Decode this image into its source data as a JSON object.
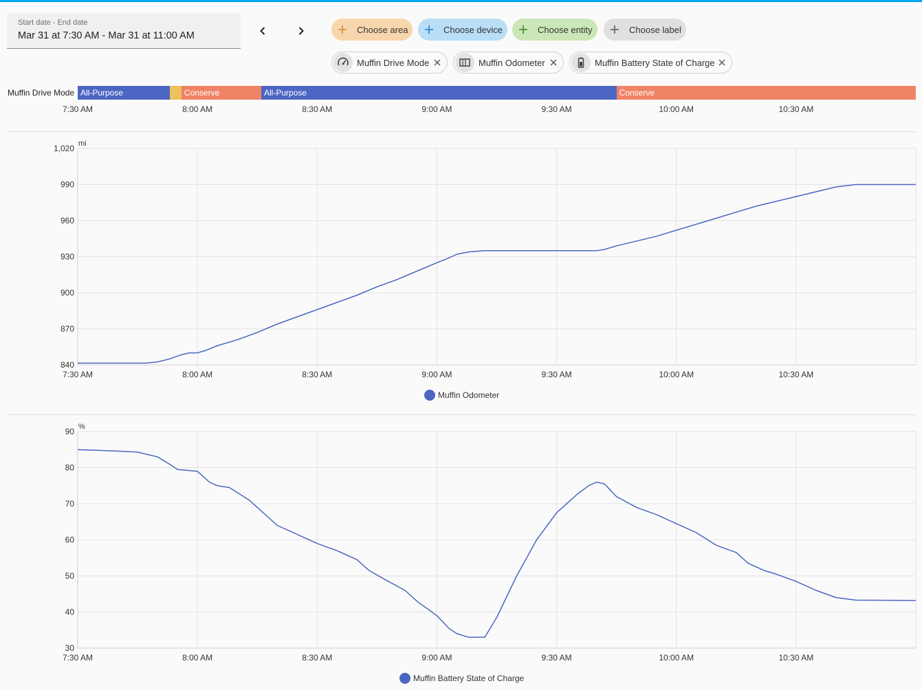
{
  "date_picker": {
    "label": "Start date - End date",
    "value": "Mar 31 at 7:30 AM - Mar 31 at 11:00 AM"
  },
  "target_chips": [
    {
      "label": "Choose area",
      "color": "#f8d6ad",
      "plus_color": "#e0913a"
    },
    {
      "label": "Choose device",
      "color": "#b9def6",
      "plus_color": "#2f89cf"
    },
    {
      "label": "Choose entity",
      "color": "#cbe6b8",
      "plus_color": "#4e8d36"
    },
    {
      "label": "Choose label",
      "color": "#e0e0e0",
      "plus_color": "#6a6a6a"
    }
  ],
  "entity_chips": [
    {
      "label": "Muffin Drive Mode",
      "icon": "speedometer-icon"
    },
    {
      "label": "Muffin Odometer",
      "icon": "odometer-icon"
    },
    {
      "label": "Muffin Battery State of Charge",
      "icon": "battery-icon"
    }
  ],
  "timeline": {
    "entity": "Muffin Drive Mode",
    "segments": [
      {
        "state": "All-Purpose",
        "start": "7:30",
        "end": "7:53",
        "color": "#4b65c2"
      },
      {
        "state": "",
        "start": "7:53",
        "end": "7:56",
        "color": "#edc15c"
      },
      {
        "state": "Conserve",
        "start": "7:56",
        "end": "8:16",
        "color": "#ef8366"
      },
      {
        "state": "All-Purpose",
        "start": "8:16",
        "end": "9:45",
        "color": "#4b65c2"
      },
      {
        "state": "Conserve",
        "start": "9:45",
        "end": "11:00",
        "color": "#ef8366"
      }
    ],
    "ticks": [
      "7:30 AM",
      "8:00 AM",
      "8:30 AM",
      "9:00 AM",
      "9:30 AM",
      "10:00 AM",
      "10:30 AM"
    ]
  },
  "chart_data": [
    {
      "type": "line",
      "unit": "mi",
      "ylim": [
        840,
        1020
      ],
      "yticks": [
        "1,020",
        "990",
        "960",
        "930",
        "900",
        "870",
        "840"
      ],
      "xlim": [
        "7:30",
        "11:00"
      ],
      "xticks": [
        "7:30 AM",
        "8:00 AM",
        "8:30 AM",
        "9:00 AM",
        "9:30 AM",
        "10:00 AM",
        "10:30 AM"
      ],
      "grid": true,
      "legend": "bottom-center",
      "series": [
        {
          "name": "Muffin Odometer",
          "color": "#4b65c2",
          "points": [
            [
              "7:30",
              841.5
            ],
            [
              "7:47",
              841.5
            ],
            [
              "7:50",
              842.5
            ],
            [
              "7:53",
              845
            ],
            [
              "7:56",
              848.5
            ],
            [
              "7:58",
              850
            ],
            [
              "8:00",
              850
            ],
            [
              "8:02",
              852
            ],
            [
              "8:05",
              856
            ],
            [
              "8:10",
              861
            ],
            [
              "8:15",
              867
            ],
            [
              "8:20",
              874
            ],
            [
              "8:25",
              880
            ],
            [
              "8:30",
              886
            ],
            [
              "8:35",
              892
            ],
            [
              "8:40",
              898
            ],
            [
              "8:45",
              905
            ],
            [
              "8:50",
              911
            ],
            [
              "8:55",
              918
            ],
            [
              "9:00",
              925
            ],
            [
              "9:03",
              929
            ],
            [
              "9:05",
              932
            ],
            [
              "9:08",
              934
            ],
            [
              "9:12",
              935
            ],
            [
              "9:20",
              935
            ],
            [
              "9:30",
              935
            ],
            [
              "9:40",
              935
            ],
            [
              "9:42",
              936
            ],
            [
              "9:45",
              939
            ],
            [
              "9:50",
              943
            ],
            [
              "9:55",
              947
            ],
            [
              "10:00",
              952
            ],
            [
              "10:05",
              957
            ],
            [
              "10:10",
              962
            ],
            [
              "10:15",
              967
            ],
            [
              "10:20",
              972
            ],
            [
              "10:25",
              976
            ],
            [
              "10:30",
              980
            ],
            [
              "10:35",
              984
            ],
            [
              "10:40",
              988
            ],
            [
              "10:45",
              990
            ],
            [
              "10:50",
              990
            ],
            [
              "11:00",
              990
            ]
          ]
        }
      ]
    },
    {
      "type": "line",
      "unit": "%",
      "ylim": [
        30,
        90
      ],
      "yticks": [
        "90",
        "80",
        "70",
        "60",
        "50",
        "40",
        "30"
      ],
      "xlim": [
        "7:30",
        "11:00"
      ],
      "xticks": [
        "7:30 AM",
        "8:00 AM",
        "8:30 AM",
        "9:00 AM",
        "9:30 AM",
        "10:00 AM",
        "10:30 AM"
      ],
      "grid": true,
      "legend": "bottom-center",
      "series": [
        {
          "name": "Muffin Battery State of Charge",
          "color": "#4b65c2",
          "points": [
            [
              "7:30",
              85
            ],
            [
              "7:35",
              84.8
            ],
            [
              "7:40",
              84.6
            ],
            [
              "7:45",
              84.3
            ],
            [
              "7:50",
              83
            ],
            [
              "7:53",
              81
            ],
            [
              "7:55",
              79.5
            ],
            [
              "8:00",
              79
            ],
            [
              "8:03",
              76
            ],
            [
              "8:05",
              75
            ],
            [
              "8:08",
              74.5
            ],
            [
              "8:13",
              71
            ],
            [
              "8:18",
              66
            ],
            [
              "8:20",
              64
            ],
            [
              "8:25",
              61.5
            ],
            [
              "8:30",
              59
            ],
            [
              "8:35",
              57
            ],
            [
              "8:40",
              54.5
            ],
            [
              "8:43",
              51.5
            ],
            [
              "8:47",
              49
            ],
            [
              "8:52",
              46
            ],
            [
              "8:55",
              43
            ],
            [
              "9:00",
              39
            ],
            [
              "9:03",
              35.5
            ],
            [
              "9:05",
              34
            ],
            [
              "9:08",
              33
            ],
            [
              "9:12",
              33
            ],
            [
              "9:15",
              38.5
            ],
            [
              "9:20",
              50
            ],
            [
              "9:25",
              60
            ],
            [
              "9:30",
              67.5
            ],
            [
              "9:35",
              72.5
            ],
            [
              "9:38",
              75
            ],
            [
              "9:40",
              76
            ],
            [
              "9:42",
              75.5
            ],
            [
              "9:45",
              72
            ],
            [
              "9:50",
              69
            ],
            [
              "9:55",
              67
            ],
            [
              "10:00",
              64.5
            ],
            [
              "10:05",
              62
            ],
            [
              "10:10",
              58.5
            ],
            [
              "10:15",
              56.5
            ],
            [
              "10:18",
              53.5
            ],
            [
              "10:22",
              51.5
            ],
            [
              "10:25",
              50.5
            ],
            [
              "10:30",
              48.5
            ],
            [
              "10:35",
              46
            ],
            [
              "10:40",
              44
            ],
            [
              "10:45",
              43.3
            ],
            [
              "11:00",
              43.2
            ]
          ]
        }
      ]
    }
  ]
}
